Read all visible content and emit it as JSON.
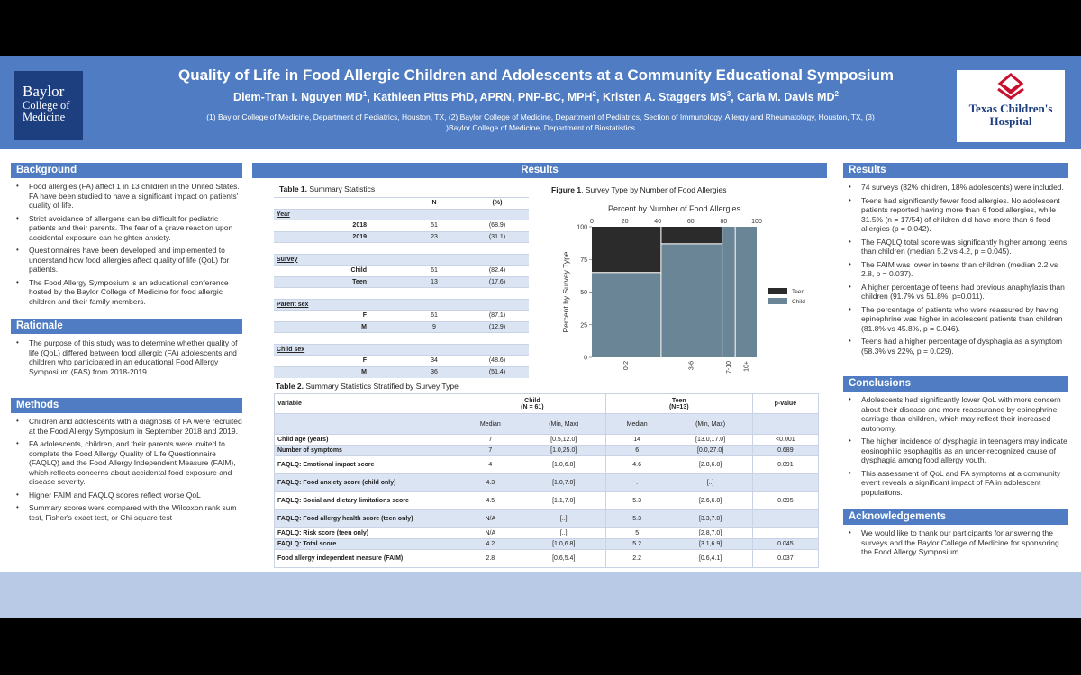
{
  "header": {
    "title": "Quality of Life in Food Allergic Children and Adolescents at a Community Educational Symposium",
    "authors": [
      {
        "name": "Diem-Tran I. Nguyen MD",
        "sup": "1"
      },
      {
        "name": "Kathleen Pitts PhD, APRN, PNP-BC, MPH",
        "sup": "2"
      },
      {
        "name": "Kristen A. Staggers MS",
        "sup": "3"
      },
      {
        "name": "Carla M. Davis MD",
        "sup": "2"
      }
    ],
    "affiliations_line1": "(1) Baylor College of Medicine, Department of Pediatrics, Houston, TX, (2) Baylor College of Medicine, Department of Pediatrics, Section of Immunology, Allergy and Rheumatology, Houston, TX, (3)",
    "affiliations_line2": ")Baylor College of Medicine, Department of Biostatistics",
    "logo_left": {
      "l1": "Baylor",
      "l2": "College of",
      "l3": "Medicine"
    },
    "logo_right": {
      "l1": "Texas Children's",
      "l2": "Hospital"
    }
  },
  "colors": {
    "accent": "#4f7cc2",
    "band": "#dbe4f2",
    "teen": "#2b2b2b",
    "child": "#6a8596"
  },
  "background": {
    "title": "Background",
    "items": [
      "Food allergies (FA) affect 1 in 13 children in the United States. FA have been studied to have a significant impact on patients' quality of life.",
      "Strict avoidance of allergens can be difficult for pediatric patients and their parents. The fear of a grave reaction upon accidental exposure can heighten anxiety.",
      "Questionnaires have been developed and implemented to understand how food allergies affect quality of life (QoL) for patients.",
      "The Food Allergy Symposium is an educational conference hosted by the Baylor College of Medicine for food allergic children and their family members."
    ]
  },
  "rationale": {
    "title": "Rationale",
    "items": [
      "The purpose of this study was to determine whether quality of life (QoL) differed between food allergic (FA) adolescents and children who participated in an educational Food Allergy Symposium (FAS) from 2018-2019."
    ]
  },
  "methods": {
    "title": "Methods",
    "items": [
      "Children and adolescents with a diagnosis of FA were recruited at the Food Allergy Symposium in September 2018 and 2019.",
      "FA adolescents, children, and their parents were invited to complete the Food Allergy Quality of Life Questionnaire (FAQLQ) and the Food Allergy Independent Measure (FAIM), which reflects concerns about accidental food exposure and disease severity.",
      "Higher FAIM and FAQLQ scores reflect worse QoL",
      "Summary scores were compared with the Wilcoxon rank sum test, Fisher's exact test, or Chi-square test"
    ]
  },
  "results_center": {
    "title": "Results",
    "table1": {
      "caption_bold": "Table 1.",
      "caption": " Summary Statistics",
      "headers": [
        "",
        "N",
        "(%)"
      ],
      "rows": [
        {
          "kind": "head",
          "label": "Year",
          "n": "",
          "pct": ""
        },
        {
          "kind": "row",
          "label": "2018",
          "n": "51",
          "pct": "(68.9)"
        },
        {
          "kind": "row",
          "label": "2019",
          "n": "23",
          "pct": "(31.1)"
        },
        {
          "kind": "blank",
          "label": "",
          "n": "",
          "pct": ""
        },
        {
          "kind": "head",
          "label": "Survey",
          "n": "",
          "pct": ""
        },
        {
          "kind": "row",
          "label": "Child",
          "n": "61",
          "pct": "(82.4)"
        },
        {
          "kind": "row",
          "label": "Teen",
          "n": "13",
          "pct": "(17.6)"
        },
        {
          "kind": "blank",
          "label": "",
          "n": "",
          "pct": ""
        },
        {
          "kind": "head",
          "label": "Parent sex",
          "n": "",
          "pct": ""
        },
        {
          "kind": "row",
          "label": "F",
          "n": "61",
          "pct": "(87.1)"
        },
        {
          "kind": "row",
          "label": "M",
          "n": "9",
          "pct": "(12.9)"
        },
        {
          "kind": "blank",
          "label": "",
          "n": "",
          "pct": ""
        },
        {
          "kind": "head",
          "label": "Child sex",
          "n": "",
          "pct": ""
        },
        {
          "kind": "row",
          "label": "F",
          "n": "34",
          "pct": "(48.6)"
        },
        {
          "kind": "row",
          "label": "M",
          "n": "36",
          "pct": "(51.4)"
        }
      ]
    },
    "figure1": {
      "caption_bold": "Figure 1",
      "caption": ". Survey Type by Number of Food Allergies"
    },
    "table2": {
      "caption_bold": "Table 2.",
      "caption": " Summary Statistics Stratified by Survey Type",
      "h_variable": "Variable",
      "h_child": "Child",
      "h_child_n": "(N = 61)",
      "h_teen": "Teen",
      "h_teen_n": "(N=13)",
      "h_p": "p-value",
      "h_median": "Median",
      "h_minmax": "(Min, Max)",
      "rows": [
        [
          "Child age (years)",
          "7",
          "[0.5,12.0]",
          "14",
          "[13.0,17.0]",
          "<0.001"
        ],
        [
          "Number of symptoms",
          "7",
          "[1.0,25.0]",
          "6",
          "[0.0,27.0]",
          "0.689"
        ],
        [
          "FAQLQ: Emotional impact score",
          "4",
          "[1.0,6.8]",
          "4.6",
          "[2.8,6.8]",
          "0.091"
        ],
        [
          "FAQLQ: Food anxiety score (child only)",
          "4.3",
          "[1.0,7.0]",
          ".",
          "[..]",
          ""
        ],
        [
          "FAQLQ: Social and dietary limitations score",
          "4.5",
          "[1.1,7.0]",
          "5.3",
          "[2.6,6.8]",
          "0.095"
        ],
        [
          "FAQLQ: Food allergy health score (teen only)",
          "N/A",
          "[..]",
          "5.3",
          "[3.3,7.0]",
          ""
        ],
        [
          "FAQLQ: Risk score (teen only)",
          "N/A",
          "[..]",
          "5",
          "[2.8,7.0]",
          ""
        ],
        [
          "FAQLQ: Total score",
          "4.2",
          "[1.0,6.8]",
          "5.2",
          "[3.1,6.9]",
          "0.045"
        ],
        [
          "Food allergy independent measure (FAIM)",
          "2.8",
          "[0.6,5.4]",
          "2.2",
          "[0.6,4.1]",
          "0.037"
        ]
      ]
    }
  },
  "results_right": {
    "title": "Results",
    "items": [
      "74 surveys (82% children, 18% adolescents) were included.",
      "Teens had significantly fewer food allergies. No adolescent patients reported having more than 6 food allergies, while 31.5% (n = 17/54) of children did have more than 6 food allergies (p = 0.042).",
      "The FAQLQ total score was significantly higher among teens than children (median 5.2 vs 4.2, p = 0.045).",
      "The FAIM was lower in teens than children (median 2.2 vs 2.8, p = 0.037).",
      "A higher percentage of teens had previous anaphylaxis than children (91.7% vs 51.8%, p=0.011).",
      "The percentage of patients who were reassured by having epinephrine was higher in adolescent patients than children (81.8% vs 45.8%, p = 0.046).",
      "Teens had a higher percentage of dysphagia as a symptom (58.3% vs 22%, p = 0.029)."
    ]
  },
  "conclusions": {
    "title": "Conclusions",
    "items": [
      "Adolescents had significantly lower QoL with more concern about their disease and more reassurance by epinephrine carriage than children, which may reflect their increased autonomy.",
      "The higher incidence of dysphagia in teenagers may indicate eosinophilic esophagitis as an under-recognized cause of dysphagia among food allergy youth.",
      "This assessment of QoL and FA symptoms at a community event reveals a significant impact of FA in adolescent populations."
    ]
  },
  "acknowledgements": {
    "title": "Acknowledgements",
    "items": [
      "We would like to thank our participants for answering the surveys and the Baylor College of Medicine for sponsoring the Food Allergy Symposium."
    ]
  },
  "chart_data": {
    "type": "mosaic",
    "title": "Percent by Number of Food Allergies",
    "ylabel": "Percent by Survey Type",
    "x_ticks": [
      0,
      20,
      40,
      60,
      80,
      100
    ],
    "y_ticks": [
      0,
      25,
      50,
      75,
      100
    ],
    "categories": [
      "0-2",
      "3-6",
      "7-10",
      "10+"
    ],
    "category_widths": [
      42,
      37,
      8,
      13
    ],
    "series": [
      {
        "name": "Teen",
        "values": [
          35,
          13,
          0,
          0
        ]
      },
      {
        "name": "Child",
        "values": [
          65,
          87,
          100,
          100
        ]
      }
    ],
    "legend": [
      "Teen",
      "Child"
    ]
  }
}
